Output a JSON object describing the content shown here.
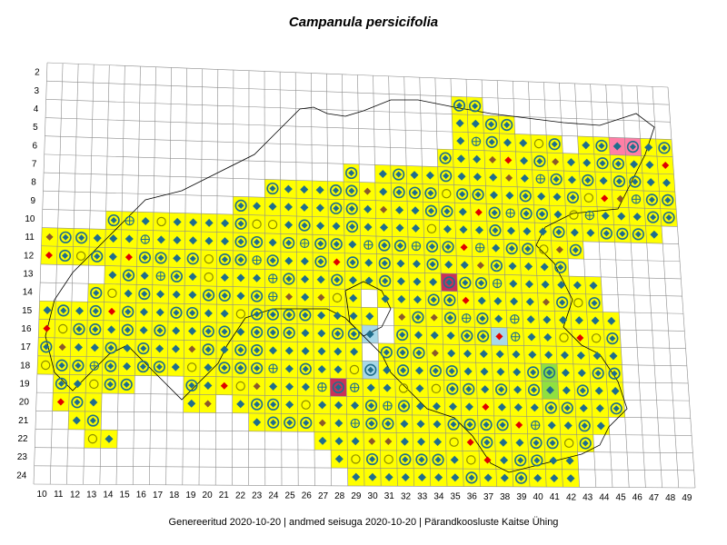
{
  "title": "Campanula persicifolia",
  "footer": "Genereeritud 2020-10-20  |  andmed seisuga 2020-10-20  |  Pärandkoosluste Kaitse Ühing",
  "row_labels": [
    "2",
    "3",
    "4",
    "5",
    "6",
    "7",
    "8",
    "9",
    "10",
    "11",
    "12",
    "13",
    "14",
    "15",
    "16",
    "17",
    "18",
    "19",
    "20",
    "21",
    "22",
    "23",
    "24"
  ],
  "col_labels": [
    "10",
    "11",
    "12",
    "13",
    "14",
    "15",
    "16",
    "17",
    "18",
    "19",
    "20",
    "21",
    "22",
    "23",
    "24",
    "25",
    "26",
    "27",
    "28",
    "29",
    "30",
    "31",
    "32",
    "33",
    "34",
    "35",
    "36",
    "37",
    "38",
    "39",
    "40",
    "41",
    "42",
    "43",
    "44",
    "45",
    "46",
    "47",
    "48",
    "49"
  ],
  "colors": {
    "grid_line": "#8c8c8c",
    "cell_yellow": "#ffff00",
    "cell_pink": "#ff7fa6",
    "cell_red": "#c8325a",
    "cell_lightblue": "#a8d8e8",
    "cell_green": "#90e040",
    "marker_teal": "#1f6e8c",
    "marker_red": "#e00000",
    "marker_brown": "#8b5a2b",
    "marker_olive": "#8c8c00",
    "border_line": "#000000"
  },
  "legend_symbols": [
    "filled-diamond",
    "diamond-in-circle",
    "hollow-circle",
    "crosshair-circle",
    "plus",
    "hollow-diamond"
  ]
}
